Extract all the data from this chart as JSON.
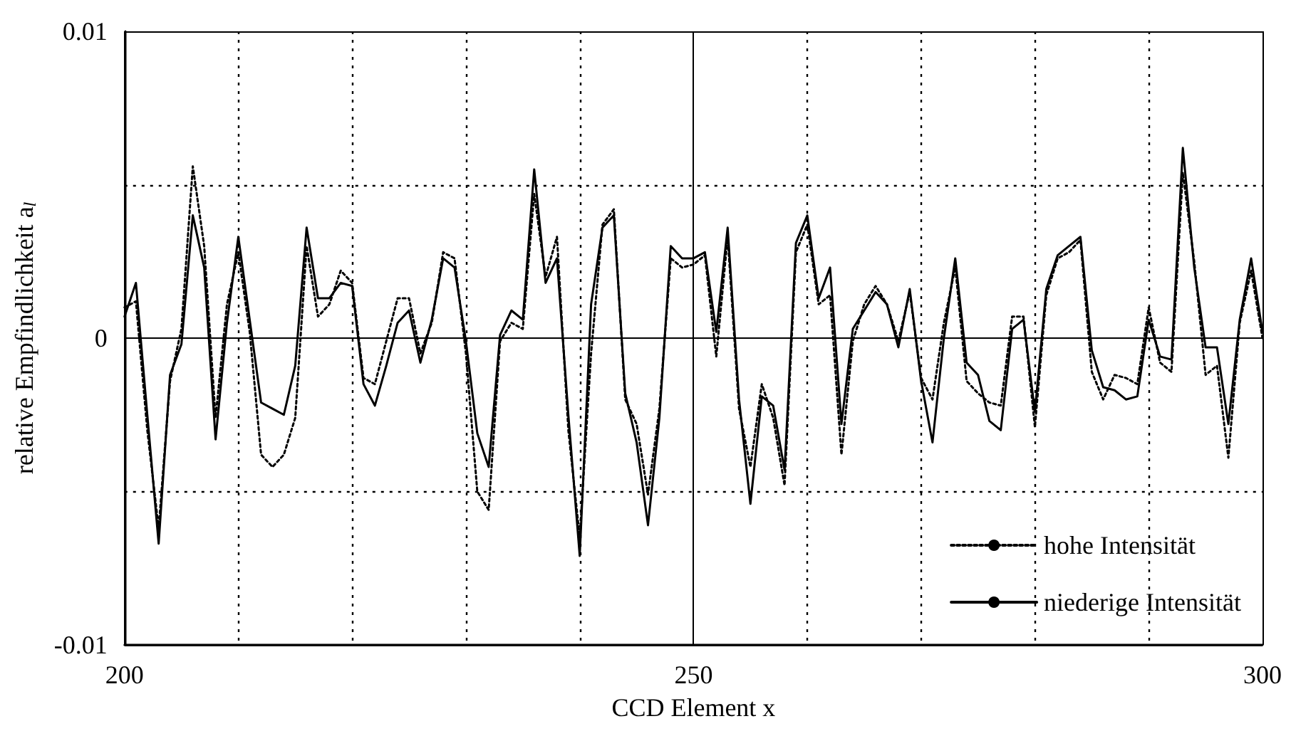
{
  "chart_data": {
    "type": "line",
    "xlabel": "CCD Element x",
    "ylabel": "relative Empfindlichkeit a$_{l}$",
    "x": [
      200,
      201,
      202,
      203,
      204,
      205,
      206,
      207,
      208,
      209,
      210,
      211,
      212,
      213,
      214,
      215,
      216,
      217,
      218,
      219,
      220,
      221,
      222,
      223,
      224,
      225,
      226,
      227,
      228,
      229,
      230,
      231,
      232,
      233,
      234,
      235,
      236,
      237,
      238,
      239,
      240,
      241,
      242,
      243,
      244,
      245,
      246,
      247,
      248,
      249,
      250,
      251,
      252,
      253,
      254,
      255,
      256,
      257,
      258,
      259,
      260,
      261,
      262,
      263,
      264,
      265,
      266,
      267,
      268,
      269,
      270,
      271,
      272,
      273,
      274,
      275,
      276,
      277,
      278,
      279,
      280,
      281,
      282,
      283,
      284,
      285,
      286,
      287,
      288,
      289,
      290,
      291,
      292,
      293,
      294,
      295,
      296,
      297,
      298,
      299,
      300
    ],
    "series": [
      {
        "name": "hohe Intensität",
        "color": "#000000",
        "line_style": "dotted",
        "values": [
          0.001,
          0.0012,
          -0.003,
          -0.0062,
          -0.0014,
          0.0003,
          0.0056,
          0.003,
          -0.0026,
          0.0011,
          0.0028,
          0.0002,
          -0.0038,
          -0.0042,
          -0.0038,
          -0.0026,
          0.003,
          0.0007,
          0.0011,
          0.0022,
          0.0018,
          -0.0013,
          -0.0015,
          -0.0001,
          0.0013,
          0.0013,
          -0.0005,
          0.0005,
          0.0028,
          0.0026,
          -0.0005,
          -0.005,
          -0.0056,
          -0.0001,
          0.0005,
          0.0003,
          0.0047,
          0.002,
          0.0033,
          -0.003,
          -0.0065,
          -0.0005,
          0.0037,
          0.0042,
          -0.002,
          -0.0028,
          -0.0051,
          -0.0023,
          0.0026,
          0.0023,
          0.0024,
          0.0027,
          -0.0006,
          0.0033,
          -0.0023,
          -0.0042,
          -0.0015,
          -0.0026,
          -0.0048,
          0.0028,
          0.0037,
          0.0011,
          0.0014,
          -0.0038,
          -0.0001,
          0.0011,
          0.0017,
          0.0011,
          -0.0001,
          0.0015,
          -0.0013,
          -0.002,
          0.0005,
          0.0023,
          -0.0014,
          -0.0018,
          -0.0021,
          -0.0022,
          0.0007,
          0.0007,
          -0.0029,
          0.0014,
          0.0026,
          0.0028,
          0.0032,
          -0.0011,
          -0.002,
          -0.0012,
          -0.0013,
          -0.0015,
          0.001,
          -0.0008,
          -0.0011,
          0.0054,
          0.0025,
          -0.0012,
          -0.0009,
          -0.0039,
          0.0005,
          0.0022,
          0.0
        ]
      },
      {
        "name": "niederige Intensität",
        "color": "#000000",
        "line_style": "solid",
        "values": [
          0.0007,
          0.0018,
          -0.0025,
          -0.0067,
          -0.0012,
          -0.0002,
          0.004,
          0.0023,
          -0.0033,
          0.0005,
          0.0033,
          0.0006,
          -0.0021,
          -0.0023,
          -0.0025,
          -0.0009,
          0.0036,
          0.0013,
          0.0013,
          0.0018,
          0.0017,
          -0.0015,
          -0.0022,
          -0.0009,
          0.0005,
          0.0009,
          -0.0008,
          0.0006,
          0.0026,
          0.0023,
          -0.0001,
          -0.0031,
          -0.0042,
          0.0001,
          0.0009,
          0.0006,
          0.0055,
          0.0018,
          0.0026,
          -0.0025,
          -0.0071,
          0.0011,
          0.0036,
          0.004,
          -0.0018,
          -0.0034,
          -0.0061,
          -0.0026,
          0.003,
          0.0026,
          0.0026,
          0.0028,
          0.0002,
          0.0036,
          -0.002,
          -0.0054,
          -0.0019,
          -0.0022,
          -0.0043,
          0.0031,
          0.004,
          0.0013,
          0.0023,
          -0.0028,
          0.0003,
          0.0009,
          0.0015,
          0.0011,
          -0.0003,
          0.0016,
          -0.0014,
          -0.0034,
          0.0,
          0.0026,
          -0.0008,
          -0.0012,
          -0.0027,
          -0.003,
          0.0003,
          0.0006,
          -0.0024,
          0.0016,
          0.0027,
          0.003,
          0.0033,
          -0.0004,
          -0.0016,
          -0.0017,
          -0.002,
          -0.0019,
          0.0006,
          -0.0006,
          -0.0007,
          0.0062,
          0.0023,
          -0.0003,
          -0.0003,
          -0.0028,
          0.0006,
          0.0026,
          0.0002
        ]
      }
    ],
    "xlim": [
      200,
      300
    ],
    "ylim": [
      -0.01,
      0.01
    ],
    "xticks": [
      200,
      {
        "value": 210,
        "label": null
      },
      {
        "value": 220,
        "label": null
      },
      {
        "value": 230,
        "label": null
      },
      {
        "value": 240,
        "label": null
      },
      250,
      {
        "value": 260,
        "label": null
      },
      {
        "value": 270,
        "label": null
      },
      {
        "value": 280,
        "label": null
      },
      {
        "value": 290,
        "label": null
      },
      300
    ],
    "yticks": [
      {
        "value": -0.01,
        "label": "-0.01"
      },
      {
        "value": -0.005,
        "label": null
      },
      0,
      {
        "value": 0.005,
        "label": null
      },
      {
        "value": 0.01,
        "label": "0.01"
      }
    ],
    "grid": true,
    "legend": "bottom right",
    "marker": "none"
  }
}
